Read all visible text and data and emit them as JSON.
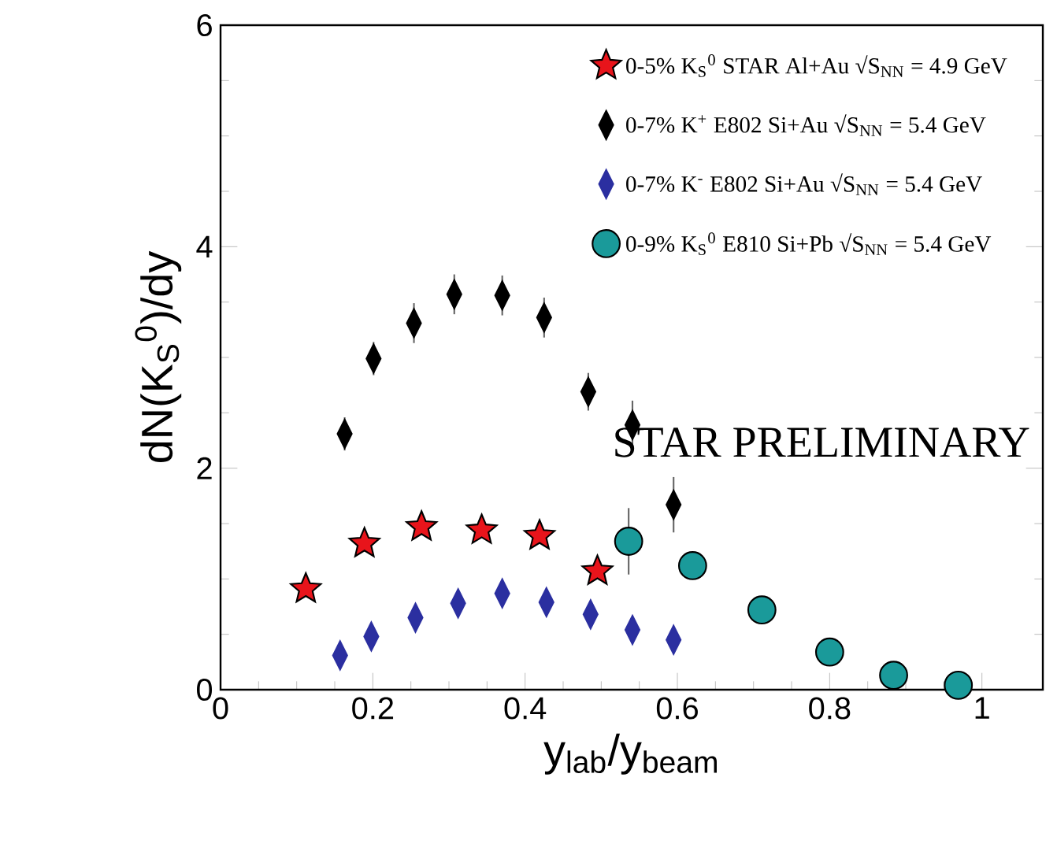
{
  "chart_data": {
    "type": "scatter",
    "xlabel": "y$_{lab}$/y$_{beam}$",
    "ylabel": "dN(K$_{S}$$^{0}$)/dy",
    "xlim": [
      0,
      1.08
    ],
    "ylim": [
      0,
      6
    ],
    "xticks": [
      0,
      0.2,
      0.4,
      0.6,
      0.8,
      1
    ],
    "yticks": [
      0,
      2,
      4,
      6
    ],
    "grid": false,
    "legend": "top right",
    "annotations": [
      "STAR PRELIMINARY"
    ],
    "series": [
      {
        "name": "0-5% K$_{S}$$^{0}$ STAR Al+Au √S$_{NN}$ = 4.9 GeV",
        "color": "#e8141b",
        "marker": "star",
        "x": [
          0.112,
          0.189,
          0.264,
          0.343,
          0.419,
          0.495
        ],
        "values": [
          0.91,
          1.32,
          1.47,
          1.44,
          1.39,
          1.07
        ]
      },
      {
        "name": "0-7% K$^{+}$ E802 Si+Au √S$_{NN}$ = 5.4 GeV",
        "color": "#000000",
        "marker": "diamond",
        "x": [
          0.163,
          0.201,
          0.254,
          0.307,
          0.37,
          0.425,
          0.483,
          0.541,
          0.595
        ],
        "values": [
          2.31,
          2.99,
          3.31,
          3.57,
          3.56,
          3.36,
          2.69,
          2.39,
          1.67
        ],
        "errors": [
          0.15,
          0.15,
          0.18,
          0.18,
          0.18,
          0.18,
          0.17,
          0.22,
          0.25
        ]
      },
      {
        "name": "0-7% K$^{-}$ E802 Si+Au √S$_{NN}$ = 5.4 GeV",
        "color": "#2b2fa0",
        "marker": "diamond",
        "x": [
          0.157,
          0.198,
          0.256,
          0.312,
          0.37,
          0.428,
          0.486,
          0.541,
          0.595
        ],
        "values": [
          0.31,
          0.48,
          0.65,
          0.78,
          0.87,
          0.79,
          0.68,
          0.54,
          0.45
        ]
      },
      {
        "name": "0-9% K$_{S}$$^{0}$ E810 Si+Pb √S$_{NN}$ = 5.4 GeV",
        "color": "#1a9a9a",
        "marker": "circle",
        "x": [
          0.536,
          0.62,
          0.711,
          0.8,
          0.884,
          0.969
        ],
        "values": [
          1.34,
          1.12,
          0.72,
          0.34,
          0.13,
          0.04
        ],
        "errors": [
          0.3,
          null,
          null,
          null,
          null,
          null
        ]
      }
    ]
  }
}
